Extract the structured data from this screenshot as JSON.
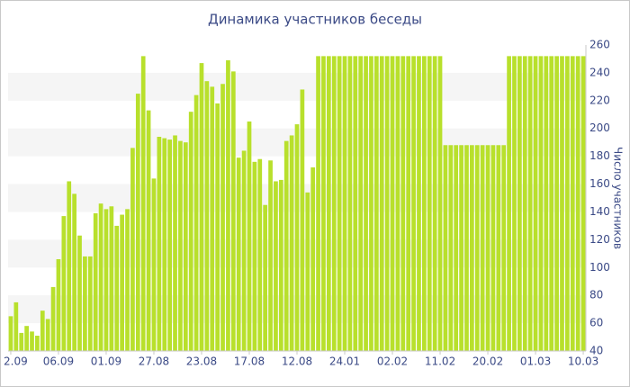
{
  "chart_data": {
    "type": "bar",
    "title": "Динамика участников беседы",
    "y_label": "Число участников",
    "color": "#b8e02c",
    "categories": [
      "2.09",
      null,
      null,
      null,
      null,
      null,
      null,
      null,
      null,
      "06.09",
      null,
      null,
      null,
      null,
      null,
      null,
      null,
      null,
      "01.09",
      null,
      null,
      null,
      null,
      null,
      null,
      null,
      null,
      "27.08",
      null,
      null,
      null,
      null,
      null,
      null,
      null,
      null,
      "23.08",
      null,
      null,
      null,
      null,
      null,
      null,
      null,
      null,
      "17.08",
      null,
      null,
      null,
      null,
      null,
      null,
      null,
      null,
      "12.08",
      null,
      null,
      null,
      null,
      null,
      null,
      null,
      null,
      "24.01",
      null,
      null,
      null,
      null,
      null,
      null,
      null,
      null,
      "02.02",
      null,
      null,
      null,
      null,
      null,
      null,
      null,
      null,
      "11.02",
      null,
      null,
      null,
      null,
      null,
      null,
      null,
      null,
      "20.02",
      null,
      null,
      null,
      null,
      null,
      null,
      null,
      null,
      "01.03",
      null,
      null,
      null,
      null,
      null,
      null,
      null,
      null,
      "10.03"
    ],
    "values": [
      65,
      75,
      53,
      58,
      54,
      51,
      69,
      63,
      86,
      106,
      137,
      162,
      153,
      123,
      108,
      108,
      139,
      146,
      142,
      144,
      130,
      138,
      142,
      186,
      225,
      252,
      213,
      164,
      194,
      193,
      192,
      195,
      191,
      190,
      212,
      224,
      247,
      234,
      230,
      218,
      232,
      249,
      241,
      179,
      184,
      205,
      176,
      178,
      145,
      177,
      162,
      163,
      191,
      195,
      203,
      228,
      154,
      172,
      252,
      252,
      252,
      252,
      252,
      252,
      252,
      252,
      252,
      252,
      252,
      252,
      252,
      252,
      252,
      252,
      252,
      252,
      252,
      252,
      252,
      252,
      252,
      252,
      188,
      188,
      188,
      188,
      188,
      188,
      188,
      188,
      188,
      188,
      188,
      188,
      252,
      252,
      252,
      252,
      252,
      252,
      252,
      252,
      252,
      252,
      252,
      252,
      252,
      252,
      252
    ],
    "ylim": [
      40,
      260
    ],
    "yticks": [
      40,
      60,
      80,
      100,
      120,
      140,
      160,
      180,
      200,
      220,
      240,
      260
    ],
    "grid": true
  }
}
